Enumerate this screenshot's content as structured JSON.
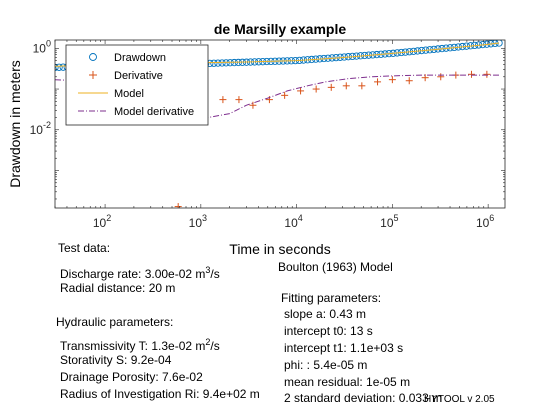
{
  "chart_data": {
    "type": "scatter",
    "title": "de Marsilly example",
    "xlabel": "Time in seconds",
    "ylabel": "Drawdown in meters",
    "xscale": "log",
    "yscale": "log",
    "xlim": [
      30,
      1500000
    ],
    "ylim": [
      0.00012,
      1.6
    ],
    "x_ticks": [
      {
        "value": 100,
        "base": "10",
        "exp": "2"
      },
      {
        "value": 1000,
        "base": "10",
        "exp": "3"
      },
      {
        "value": 10000,
        "base": "10",
        "exp": "4"
      },
      {
        "value": 100000,
        "base": "10",
        "exp": "5"
      },
      {
        "value": 1000000,
        "base": "10",
        "exp": "6"
      }
    ],
    "y_ticks": [
      {
        "value": 0.01,
        "base": "10",
        "exp": "-2"
      },
      {
        "value": 1,
        "base": "10",
        "exp": "0"
      }
    ],
    "grid": false,
    "legend_position": "top-left",
    "series": [
      {
        "name": "Drawdown",
        "marker": "circle",
        "color": "#0072BD",
        "x_range": [
          30,
          1300000
        ],
        "count": 110,
        "y_at_x": [
          [
            30,
            0.34
          ],
          [
            1000,
            0.42
          ],
          [
            10000,
            0.5
          ],
          [
            100000,
            0.75
          ],
          [
            1300000,
            1.35
          ]
        ]
      },
      {
        "name": "Derivative",
        "marker": "plus",
        "color": "#D95319",
        "x": [
          580,
          1000,
          1700,
          2500,
          3500,
          5200,
          7500,
          11000,
          16000,
          23000,
          33000,
          48000,
          70000,
          100000,
          150000,
          220000,
          320000,
          460000,
          670000,
          970000
        ],
        "y": [
          0.00013,
          0.02,
          0.055,
          0.055,
          0.04,
          0.055,
          0.07,
          0.09,
          0.1,
          0.11,
          0.12,
          0.12,
          0.15,
          0.17,
          0.16,
          0.19,
          0.2,
          0.22,
          0.23,
          0.23
        ]
      },
      {
        "name": "Model",
        "line": "solid",
        "color": "#EDB120",
        "x": [
          30,
          100,
          300,
          1000,
          3000,
          10000,
          30000,
          100000,
          300000,
          1000000,
          1300000
        ],
        "y": [
          0.36,
          0.41,
          0.43,
          0.44,
          0.46,
          0.5,
          0.59,
          0.75,
          0.95,
          1.25,
          1.35
        ]
      },
      {
        "name": "Model derivative",
        "line": "dashdot",
        "color": "#7E2F8E",
        "x": [
          30,
          100,
          300,
          600,
          900,
          1200,
          2000,
          3000,
          5000,
          8000,
          13000,
          20000,
          35000,
          60000,
          100000,
          200000,
          400000,
          800000,
          1300000
        ],
        "y": [
          0.17,
          0.15,
          0.06,
          0.03,
          0.02,
          0.02,
          0.025,
          0.04,
          0.06,
          0.09,
          0.12,
          0.15,
          0.18,
          0.2,
          0.21,
          0.22,
          0.22,
          0.22,
          0.22
        ]
      }
    ]
  },
  "left_panel": {
    "test_data_heading": "Test data:",
    "discharge_rate_prefix": "Discharge rate: 3.00e-02 m",
    "discharge_rate_exp": "3",
    "discharge_rate_suffix": "/s",
    "radial_distance": "Radial distance: 20 m",
    "hydraulic_heading": "Hydraulic parameters:",
    "transmissivity_prefix": "Transmissivity T: 1.3e-02 m",
    "transmissivity_exp": "2",
    "transmissivity_suffix": "/s",
    "storativity": "Storativity S: 9.2e-04",
    "drainage_porosity": "Drainage Porosity: 7.6e-02",
    "radius_investigation": "Radius of Investigation Ri: 9.4e+02 m"
  },
  "right_panel": {
    "model_name": "Boulton (1963) Model",
    "fitting_heading": "Fitting parameters:",
    "slope": "slope a: 0.43 m",
    "intercept_t0": "intercept t0: 13 s",
    "intercept_t1": "intercept t1: 1.1e+03 s",
    "phi": "phi: : 5.4e-05 m",
    "mean_residual": "mean residual: 1e-05 m",
    "std_deviation": "2 standard deviation: 0.033 m"
  },
  "footer": {
    "version": "HYTOOL v 2.05"
  },
  "colors": {
    "drawdown": "#0072BD",
    "derivative": "#D95319",
    "model": "#EDB120",
    "model_derivative": "#7E2F8E"
  }
}
